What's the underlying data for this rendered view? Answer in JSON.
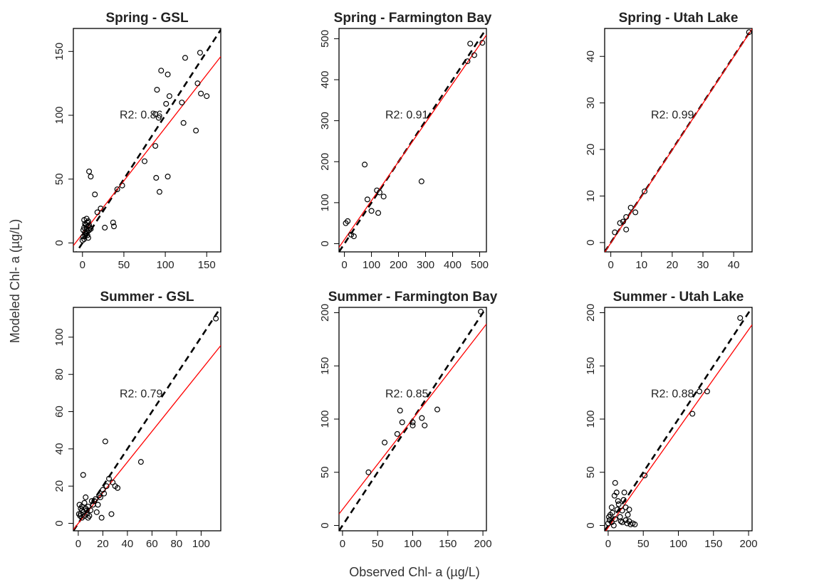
{
  "axis_labels": {
    "x": "Observed Chl- a (µg/L)",
    "y": "Modeled Chl- a (µg/L)"
  },
  "chart_data": [
    {
      "type": "scatter",
      "title": "Spring - GSL",
      "annotation": "R2: 0.86",
      "xlim": [
        -11,
        167
      ],
      "ylim": [
        -7,
        168
      ],
      "xticks": [
        0,
        50,
        100,
        150
      ],
      "yticks": [
        0,
        50,
        100,
        150
      ],
      "color": "#000000",
      "x": [
        142,
        124,
        150,
        143,
        137,
        139,
        122,
        120,
        103,
        95,
        90,
        92,
        88,
        88,
        105,
        101,
        93,
        89,
        103,
        75,
        48,
        42,
        37,
        38,
        27,
        22,
        18,
        15,
        10,
        8,
        7,
        5,
        2,
        1,
        2,
        3,
        4,
        5,
        6,
        7,
        8,
        9,
        1,
        3,
        5,
        7,
        0,
        2,
        4,
        6,
        8,
        3,
        6,
        10
      ],
      "values": [
        149,
        145,
        115,
        117,
        88,
        125,
        94,
        110,
        132,
        135,
        120,
        98,
        101,
        76,
        115,
        109,
        40,
        51,
        52,
        64,
        45,
        42,
        16,
        13,
        12,
        27,
        24,
        38,
        52,
        56,
        17,
        19,
        18,
        10,
        12,
        8,
        14,
        11,
        9,
        13,
        10,
        12,
        5,
        6,
        8,
        4,
        2,
        3,
        7,
        6,
        14,
        15,
        16,
        11
      ],
      "lines": [
        {
          "x": [
            -11,
            167
          ],
          "values": [
            -11,
            167
          ],
          "color": "#000000",
          "dash": true
        },
        {
          "x": [
            -11,
            167
          ],
          "values": [
            -2.1,
            146
          ],
          "color": "#ff0000",
          "dash": false
        }
      ]
    },
    {
      "type": "scatter",
      "title": "Spring - Farmington Bay",
      "annotation": "R2: 0.91",
      "xlim": [
        -20,
        525
      ],
      "ylim": [
        -20,
        525
      ],
      "xticks": [
        0,
        100,
        200,
        300,
        400,
        500
      ],
      "yticks": [
        0,
        100,
        200,
        300,
        400,
        500
      ],
      "color": "#000000",
      "x": [
        5,
        12,
        25,
        35,
        75,
        85,
        100,
        120,
        125,
        130,
        145,
        285,
        455,
        465,
        480,
        510
      ],
      "values": [
        50,
        55,
        22,
        18,
        193,
        108,
        80,
        130,
        75,
        125,
        115,
        152,
        445,
        488,
        460,
        490
      ],
      "lines": [
        {
          "x": [
            -20,
            525
          ],
          "values": [
            -20,
            525
          ],
          "color": "#000000",
          "dash": true
        },
        {
          "x": [
            -20,
            525
          ],
          "values": [
            -9,
            509
          ],
          "color": "#ff0000",
          "dash": false
        }
      ]
    },
    {
      "type": "scatter",
      "title": "Spring - Utah Lake",
      "annotation": "R2: 0.99",
      "xlim": [
        -2,
        46
      ],
      "ylim": [
        -2,
        46
      ],
      "xticks": [
        0,
        10,
        20,
        30,
        40
      ],
      "yticks": [
        0,
        10,
        20,
        30,
        40
      ],
      "color": "#000000",
      "x": [
        1.3,
        3,
        4,
        5,
        5,
        6.5,
        8,
        11,
        45
      ],
      "values": [
        2.2,
        4.2,
        4.5,
        2.8,
        5.5,
        7.5,
        6.5,
        11,
        45.2
      ],
      "lines": [
        {
          "x": [
            -2,
            46
          ],
          "values": [
            -2,
            46
          ],
          "color": "#000000",
          "dash": true
        },
        {
          "x": [
            -2,
            46
          ],
          "values": [
            -2.1,
            45.9
          ],
          "color": "#ff0000",
          "dash": false
        }
      ]
    },
    {
      "type": "scatter",
      "title": "Summer - GSL",
      "annotation": "R2: 0.79",
      "xlim": [
        -4,
        116
      ],
      "ylim": [
        -4,
        116
      ],
      "xticks": [
        0,
        20,
        40,
        60,
        80,
        100
      ],
      "yticks": [
        0,
        20,
        40,
        60,
        80,
        100
      ],
      "color": "#000000",
      "x": [
        1,
        2,
        2,
        3,
        3,
        4,
        4,
        5,
        6,
        6,
        7,
        8,
        8,
        10,
        11,
        12,
        13,
        15,
        18,
        19,
        20,
        21,
        22,
        23,
        25,
        27,
        28,
        30,
        32,
        51,
        112,
        0.5,
        1.5,
        3,
        5,
        7,
        9,
        14,
        16,
        17
      ],
      "values": [
        10,
        8,
        5,
        7,
        3,
        26,
        6,
        4,
        8,
        14,
        5,
        3,
        9,
        7,
        12,
        10,
        12,
        6,
        14,
        3,
        18,
        16,
        44,
        20,
        24,
        5,
        22,
        20,
        19,
        33,
        110,
        5,
        4,
        9,
        11,
        7,
        4,
        13,
        10,
        15
      ],
      "lines": [
        {
          "x": [
            -4,
            116
          ],
          "values": [
            -4,
            116
          ],
          "color": "#000000",
          "dash": true
        },
        {
          "x": [
            -4,
            116
          ],
          "values": [
            -3.3,
            95.5
          ],
          "color": "#ff0000",
          "dash": false
        }
      ]
    },
    {
      "type": "scatter",
      "title": "Summer - Farmington Bay",
      "annotation": "R2: 0.85",
      "xlim": [
        -5,
        205
      ],
      "ylim": [
        -5,
        205
      ],
      "xticks": [
        0,
        50,
        100,
        150,
        200
      ],
      "yticks": [
        0,
        50,
        100,
        150,
        200
      ],
      "color": "#000000",
      "x": [
        37,
        60,
        78,
        82,
        85,
        100,
        100,
        113,
        117,
        135,
        197
      ],
      "values": [
        50,
        78,
        86,
        108,
        97,
        97,
        94,
        101,
        94,
        109,
        201
      ],
      "lines": [
        {
          "x": [
            -5,
            205
          ],
          "values": [
            -5,
            205
          ],
          "color": "#000000",
          "dash": true
        },
        {
          "x": [
            -5,
            205
          ],
          "values": [
            10.8,
            189.3
          ],
          "color": "#ff0000",
          "dash": false
        }
      ]
    },
    {
      "type": "scatter",
      "title": "Summer - Utah Lake",
      "annotation": "R2: 0.88",
      "xlim": [
        -5,
        205
      ],
      "ylim": [
        -5,
        205
      ],
      "xticks": [
        0,
        50,
        100,
        150,
        200
      ],
      "yticks": [
        0,
        50,
        100,
        150,
        200
      ],
      "color": "#000000",
      "x": [
        0,
        1,
        2,
        3,
        5,
        5,
        6,
        8,
        9,
        10,
        10,
        12,
        13,
        15,
        17,
        18,
        20,
        22,
        23,
        25,
        25,
        27,
        28,
        30,
        30,
        32,
        35,
        38,
        14,
        20,
        52,
        120,
        130,
        141,
        188
      ],
      "values": [
        2,
        8,
        5,
        10,
        3,
        17,
        12,
        0,
        28,
        40,
        6,
        31,
        15,
        20,
        8,
        4,
        14,
        24,
        31,
        17,
        5,
        2,
        10,
        15,
        4,
        1,
        2,
        1,
        23,
        3,
        47,
        105,
        126,
        126,
        195
      ],
      "lines": [
        {
          "x": [
            -5,
            205
          ],
          "values": [
            -5,
            205
          ],
          "color": "#000000",
          "dash": true
        },
        {
          "x": [
            -5,
            205
          ],
          "values": [
            -6.7,
            188.6
          ],
          "color": "#ff0000",
          "dash": false
        }
      ]
    }
  ]
}
